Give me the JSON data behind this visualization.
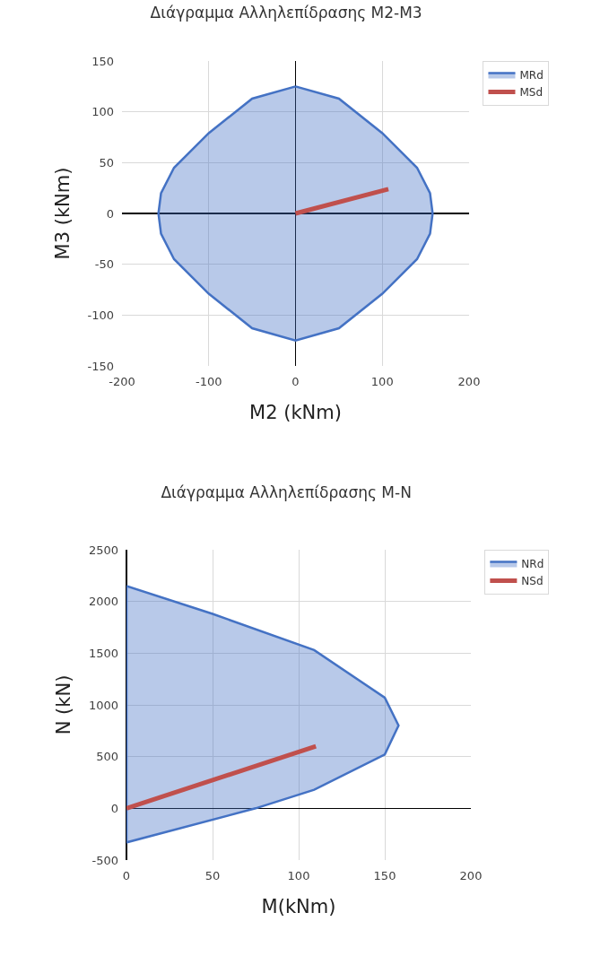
{
  "chart_data": [
    {
      "type": "area",
      "title": "Διάγραμμα Αλληλεπίδρασης M2-M3",
      "xlabel": "M2 (kNm)",
      "ylabel": "M3 (kNm)",
      "xlim": [
        -200,
        200
      ],
      "xticks": [
        -200,
        -100,
        0,
        100,
        200
      ],
      "ylim": [
        -150,
        150
      ],
      "yticks": [
        -150,
        -100,
        -50,
        0,
        50,
        100,
        150
      ],
      "grid": true,
      "legend": "top right",
      "marker": "none",
      "line_style": "solid",
      "series": [
        {
          "name": "MRd",
          "color": "#4472c4",
          "x": [
            0,
            50,
            100,
            140,
            155,
            158,
            155,
            140,
            100,
            50,
            0,
            -50,
            -100,
            -140,
            -155,
            -158,
            -155,
            -140,
            -100,
            -50,
            0
          ],
          "values": [
            125,
            113,
            79,
            45,
            20,
            0,
            -20,
            -45,
            -79,
            -113,
            -125,
            -113,
            -79,
            -45,
            -20,
            0,
            20,
            45,
            79,
            113,
            125
          ]
        },
        {
          "name": "MSd",
          "type": "line",
          "color": "#c0504d",
          "x": [
            0,
            107
          ],
          "values": [
            0,
            24
          ]
        }
      ]
    },
    {
      "type": "area",
      "title": "Διάγραμμα Αλληλεπίδρασης M-N",
      "xlabel": "M(kNm)",
      "ylabel": "N (kN)",
      "xlim": [
        0,
        200
      ],
      "xticks": [
        0,
        50,
        100,
        150,
        200
      ],
      "ylim": [
        -500,
        2500
      ],
      "yticks": [
        -500,
        0,
        500,
        1000,
        1500,
        2000,
        2500
      ],
      "grid": true,
      "legend": "top right",
      "marker": "none",
      "line_style": "solid",
      "series": [
        {
          "name": "NRd",
          "color": "#4472c4",
          "x": [
            0,
            50,
            109,
            150,
            158,
            150,
            109,
            75,
            0,
            0
          ],
          "values": [
            2150,
            1880,
            1530,
            1070,
            800,
            520,
            180,
            0,
            -330,
            2150
          ]
        },
        {
          "name": "NSd",
          "type": "line",
          "color": "#c0504d",
          "x": [
            0,
            110
          ],
          "values": [
            0,
            600
          ]
        }
      ]
    }
  ]
}
